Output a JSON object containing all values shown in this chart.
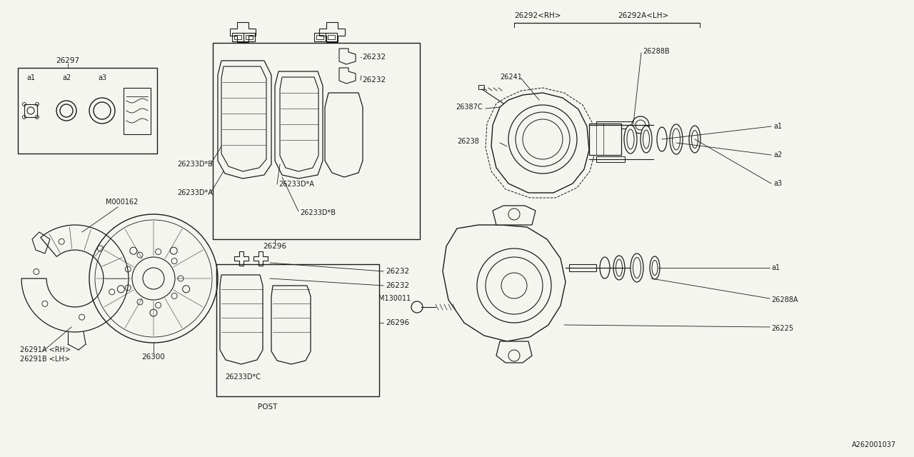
{
  "bg_color": "#f5f5f0",
  "line_color": "#1a1a1a",
  "diagram_id": "A262001037",
  "parts": {
    "box_26297": "26297",
    "a1": "a1",
    "a2": "a2",
    "a3": "a3",
    "rotor_shield_rh": "26291A <RH>",
    "rotor_shield_lh": "26291B <LH>",
    "rotor_ref": "M000162",
    "rotor_label": "26300",
    "pad_set_top": "26296",
    "pad_set_bottom": "26296",
    "post_label": "POST",
    "clip1": "26232",
    "clip2": "26232",
    "clip3": "26232",
    "clip4": "26232",
    "shim_B1": "26233D*B",
    "shim_A1": "26233D*A",
    "shim_A2": "26233D*A",
    "shim_B2": "26233D*B",
    "shim_C": "26233D*C",
    "caliper_rh": "26292<RH>",
    "caliper_lh": "26292A<LH>",
    "bleeder": "26387C",
    "pin_boot": "26241",
    "slide_pin_b": "26288B",
    "caliper_body": "26238",
    "seal_a1": "a1",
    "seal_a2": "a2",
    "seal_a3": "a3",
    "bracket_bolt": "M130011",
    "dust_seal_a1": "a1",
    "bracket": "26288A",
    "mount": "26225"
  },
  "fs": 7.0,
  "fsp": 7.5
}
